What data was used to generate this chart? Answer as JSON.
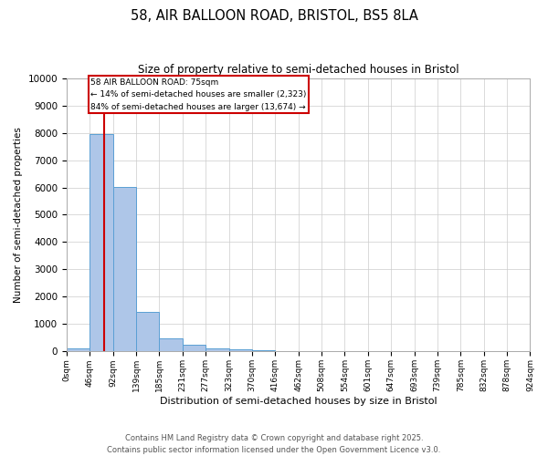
{
  "title_line1": "58, AIR BALLOON ROAD, BRISTOL, BS5 8LA",
  "title_line2": "Size of property relative to semi-detached houses in Bristol",
  "xlabel": "Distribution of semi-detached houses by size in Bristol",
  "ylabel": "Number of semi-detached properties",
  "bin_labels": [
    "0sqm",
    "46sqm",
    "92sqm",
    "139sqm",
    "185sqm",
    "231sqm",
    "277sqm",
    "323sqm",
    "370sqm",
    "416sqm",
    "462sqm",
    "508sqm",
    "554sqm",
    "601sqm",
    "647sqm",
    "693sqm",
    "739sqm",
    "785sqm",
    "832sqm",
    "878sqm",
    "924sqm"
  ],
  "bar_heights": [
    130,
    7950,
    6020,
    1450,
    480,
    240,
    130,
    90,
    55,
    0,
    0,
    0,
    0,
    0,
    0,
    0,
    0,
    0,
    0,
    0
  ],
  "bar_color": "#aec6e8",
  "bar_edge_color": "#5a9fd4",
  "property_line_x": 75,
  "annotation_title": "58 AIR BALLOON ROAD: 75sqm",
  "annotation_line1": "← 14% of semi-detached houses are smaller (2,323)",
  "annotation_line2": "84% of semi-detached houses are larger (13,674) →",
  "annotation_box_color": "#cc0000",
  "ylim": [
    0,
    10000
  ],
  "yticks": [
    0,
    1000,
    2000,
    3000,
    4000,
    5000,
    6000,
    7000,
    8000,
    9000,
    10000
  ],
  "footer_line1": "Contains HM Land Registry data © Crown copyright and database right 2025.",
  "footer_line2": "Contains public sector information licensed under the Open Government Licence v3.0.",
  "background_color": "#ffffff",
  "grid_color": "#cccccc",
  "bin_width": 46,
  "n_bins": 20
}
